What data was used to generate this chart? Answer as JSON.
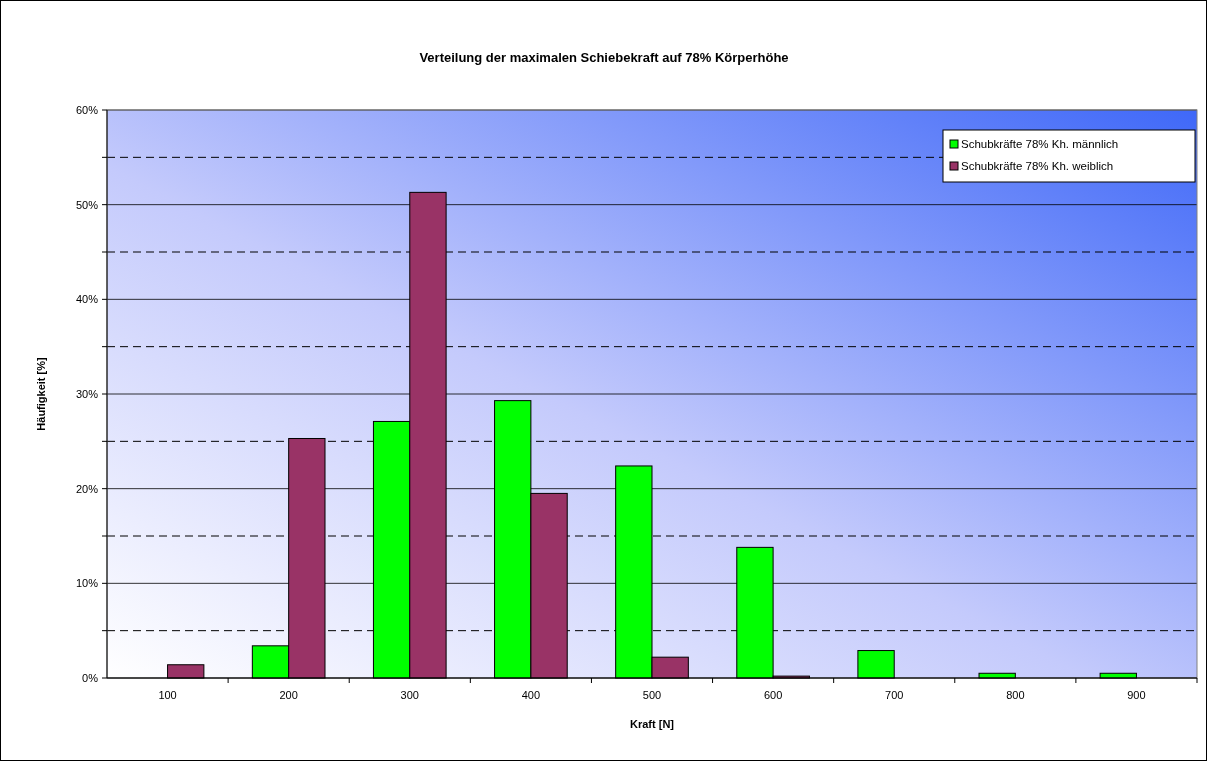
{
  "chart_data": {
    "type": "bar",
    "title": "Verteilung der maximalen Schiebekraft auf 78% Körperhöhe",
    "xlabel": "Kraft [N]",
    "ylabel": "Häufigkeit [%]",
    "categories": [
      "100",
      "200",
      "300",
      "400",
      "500",
      "600",
      "700",
      "800",
      "900"
    ],
    "series": [
      {
        "name": "Schubkräfte 78% Kh. männlich",
        "color": "#00ff00",
        "values": [
          0,
          3.4,
          27.1,
          29.3,
          22.4,
          13.8,
          2.9,
          0.5,
          0.5
        ]
      },
      {
        "name": "Schubkräfte 78% Kh. weiblich",
        "color": "#993366",
        "values": [
          1.4,
          25.3,
          51.3,
          19.5,
          2.2,
          0.2,
          0,
          0,
          0
        ]
      }
    ],
    "ylim": [
      0,
      60
    ],
    "yticks": [
      {
        "value": 0,
        "label": "0%"
      },
      {
        "value": 5,
        "label": null
      },
      {
        "value": 10,
        "label": "10%"
      },
      {
        "value": 15,
        "label": null
      },
      {
        "value": 20,
        "label": "20%"
      },
      {
        "value": 25,
        "label": null
      },
      {
        "value": 30,
        "label": "30%"
      },
      {
        "value": 35,
        "label": null
      },
      {
        "value": 40,
        "label": "40%"
      },
      {
        "value": 45,
        "label": null
      },
      {
        "value": 50,
        "label": "50%"
      },
      {
        "value": 55,
        "label": null
      },
      {
        "value": 60,
        "label": "60%"
      }
    ],
    "grid": "y",
    "legend": "top right"
  }
}
